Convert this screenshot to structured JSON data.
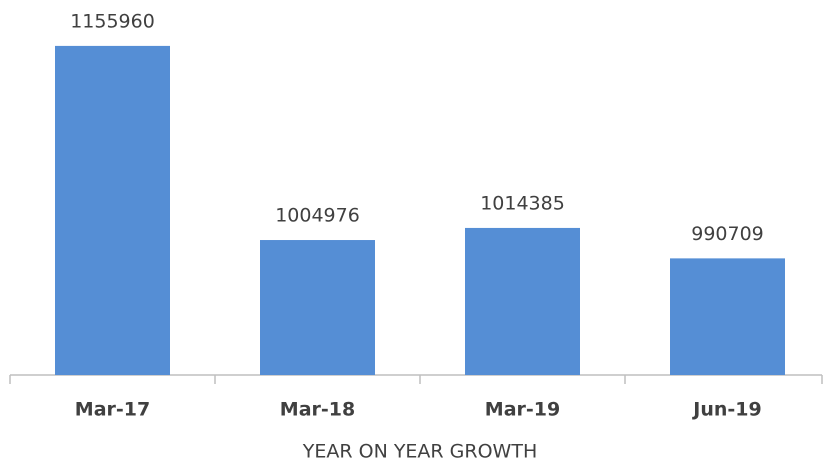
{
  "chart_data": {
    "type": "bar",
    "x_label": "YEAR ON YEAR GROWTH",
    "categories": [
      "Mar-17",
      "Mar-18",
      "Mar-19",
      "Jun-19"
    ],
    "values": [
      1155960,
      1004976,
      1014385,
      990709
    ],
    "color": "#558ed5",
    "ylim": [
      900000,
      1180000
    ],
    "grid": false
  }
}
